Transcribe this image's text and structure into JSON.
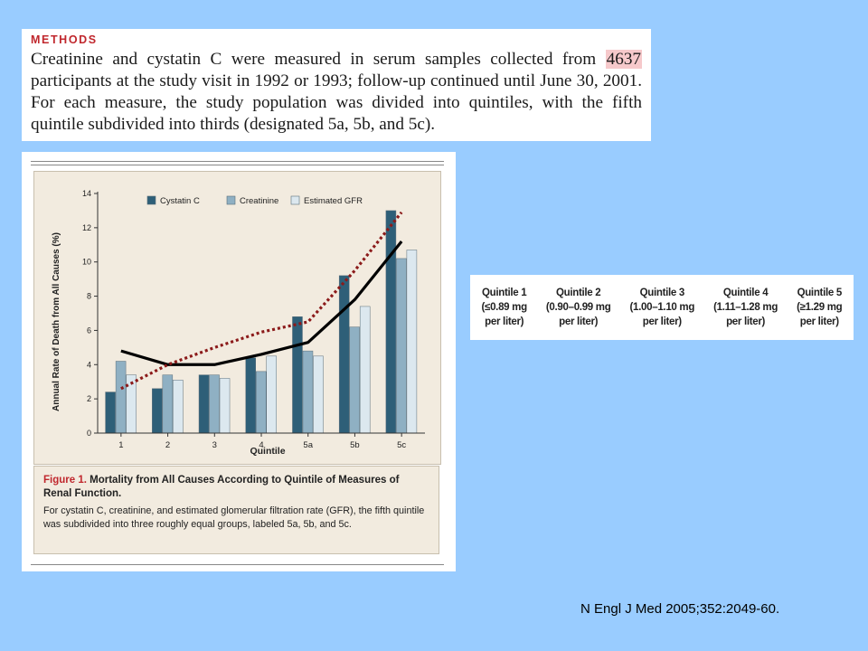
{
  "methods": {
    "heading": "METHODS",
    "text_before": "Creatinine and cystatin C were measured in serum samples collected from ",
    "highlight": "4637",
    "text_after": " participants at the study visit in 1992 or 1993; follow-up continued until June 30, 2001. For each measure, the study population was divided into quintiles, with the fifth quintile subdivided into thirds (designated 5a, 5b, and 5c)."
  },
  "figure": {
    "caption_label": "Figure 1.",
    "caption_title": "Mortality from All Causes According to Quintile of Measures of Renal Function.",
    "caption_body": "For cystatin C, creatinine, and estimated glomerular filtration rate (GFR), the fifth quintile was subdivided into three roughly equal groups, labeled 5a, 5b, and 5c."
  },
  "chart_data": {
    "type": "bar",
    "xlabel": "Quintile",
    "ylabel": "Annual Rate of Death from All Causes (%)",
    "categories": [
      "1",
      "2",
      "3",
      "4",
      "5a",
      "5b",
      "5c"
    ],
    "ylim": [
      0,
      14
    ],
    "yticks": [
      0,
      2,
      4,
      6,
      8,
      10,
      12,
      14
    ],
    "legend_position": "top",
    "series": [
      {
        "name": "Cystatin C",
        "color": "#2e5f78",
        "values": [
          2.4,
          2.6,
          3.4,
          4.4,
          6.8,
          9.2,
          13.0
        ]
      },
      {
        "name": "Creatinine",
        "color": "#8fb0c3",
        "values": [
          4.2,
          3.4,
          3.4,
          3.6,
          4.8,
          6.2,
          10.2
        ]
      },
      {
        "name": "Estimated GFR",
        "color": "#dce8ef",
        "values": [
          3.4,
          3.1,
          3.2,
          4.5,
          4.5,
          7.4,
          10.7
        ]
      }
    ],
    "overlays": [
      {
        "style": "solid-black",
        "values": [
          4.8,
          4.0,
          4.0,
          4.6,
          5.3,
          7.8,
          11.2
        ]
      },
      {
        "style": "dotted-red",
        "values": [
          2.6,
          4.0,
          5.0,
          5.9,
          6.5,
          9.5,
          12.9
        ]
      }
    ]
  },
  "quintile_labels": [
    {
      "name": "Quintile 1",
      "range": "(≤0.89 mg",
      "unit": "per liter)"
    },
    {
      "name": "Quintile 2",
      "range": "(0.90–0.99 mg",
      "unit": "per liter)"
    },
    {
      "name": "Quintile 3",
      "range": "(1.00–1.10 mg",
      "unit": "per liter)"
    },
    {
      "name": "Quintile 4",
      "range": "(1.11–1.28 mg",
      "unit": "per liter)"
    },
    {
      "name": "Quintile 5",
      "range": "(≥1.29 mg",
      "unit": "per liter)"
    }
  ],
  "citation": "N Engl J Med 2005;352:2049-60."
}
